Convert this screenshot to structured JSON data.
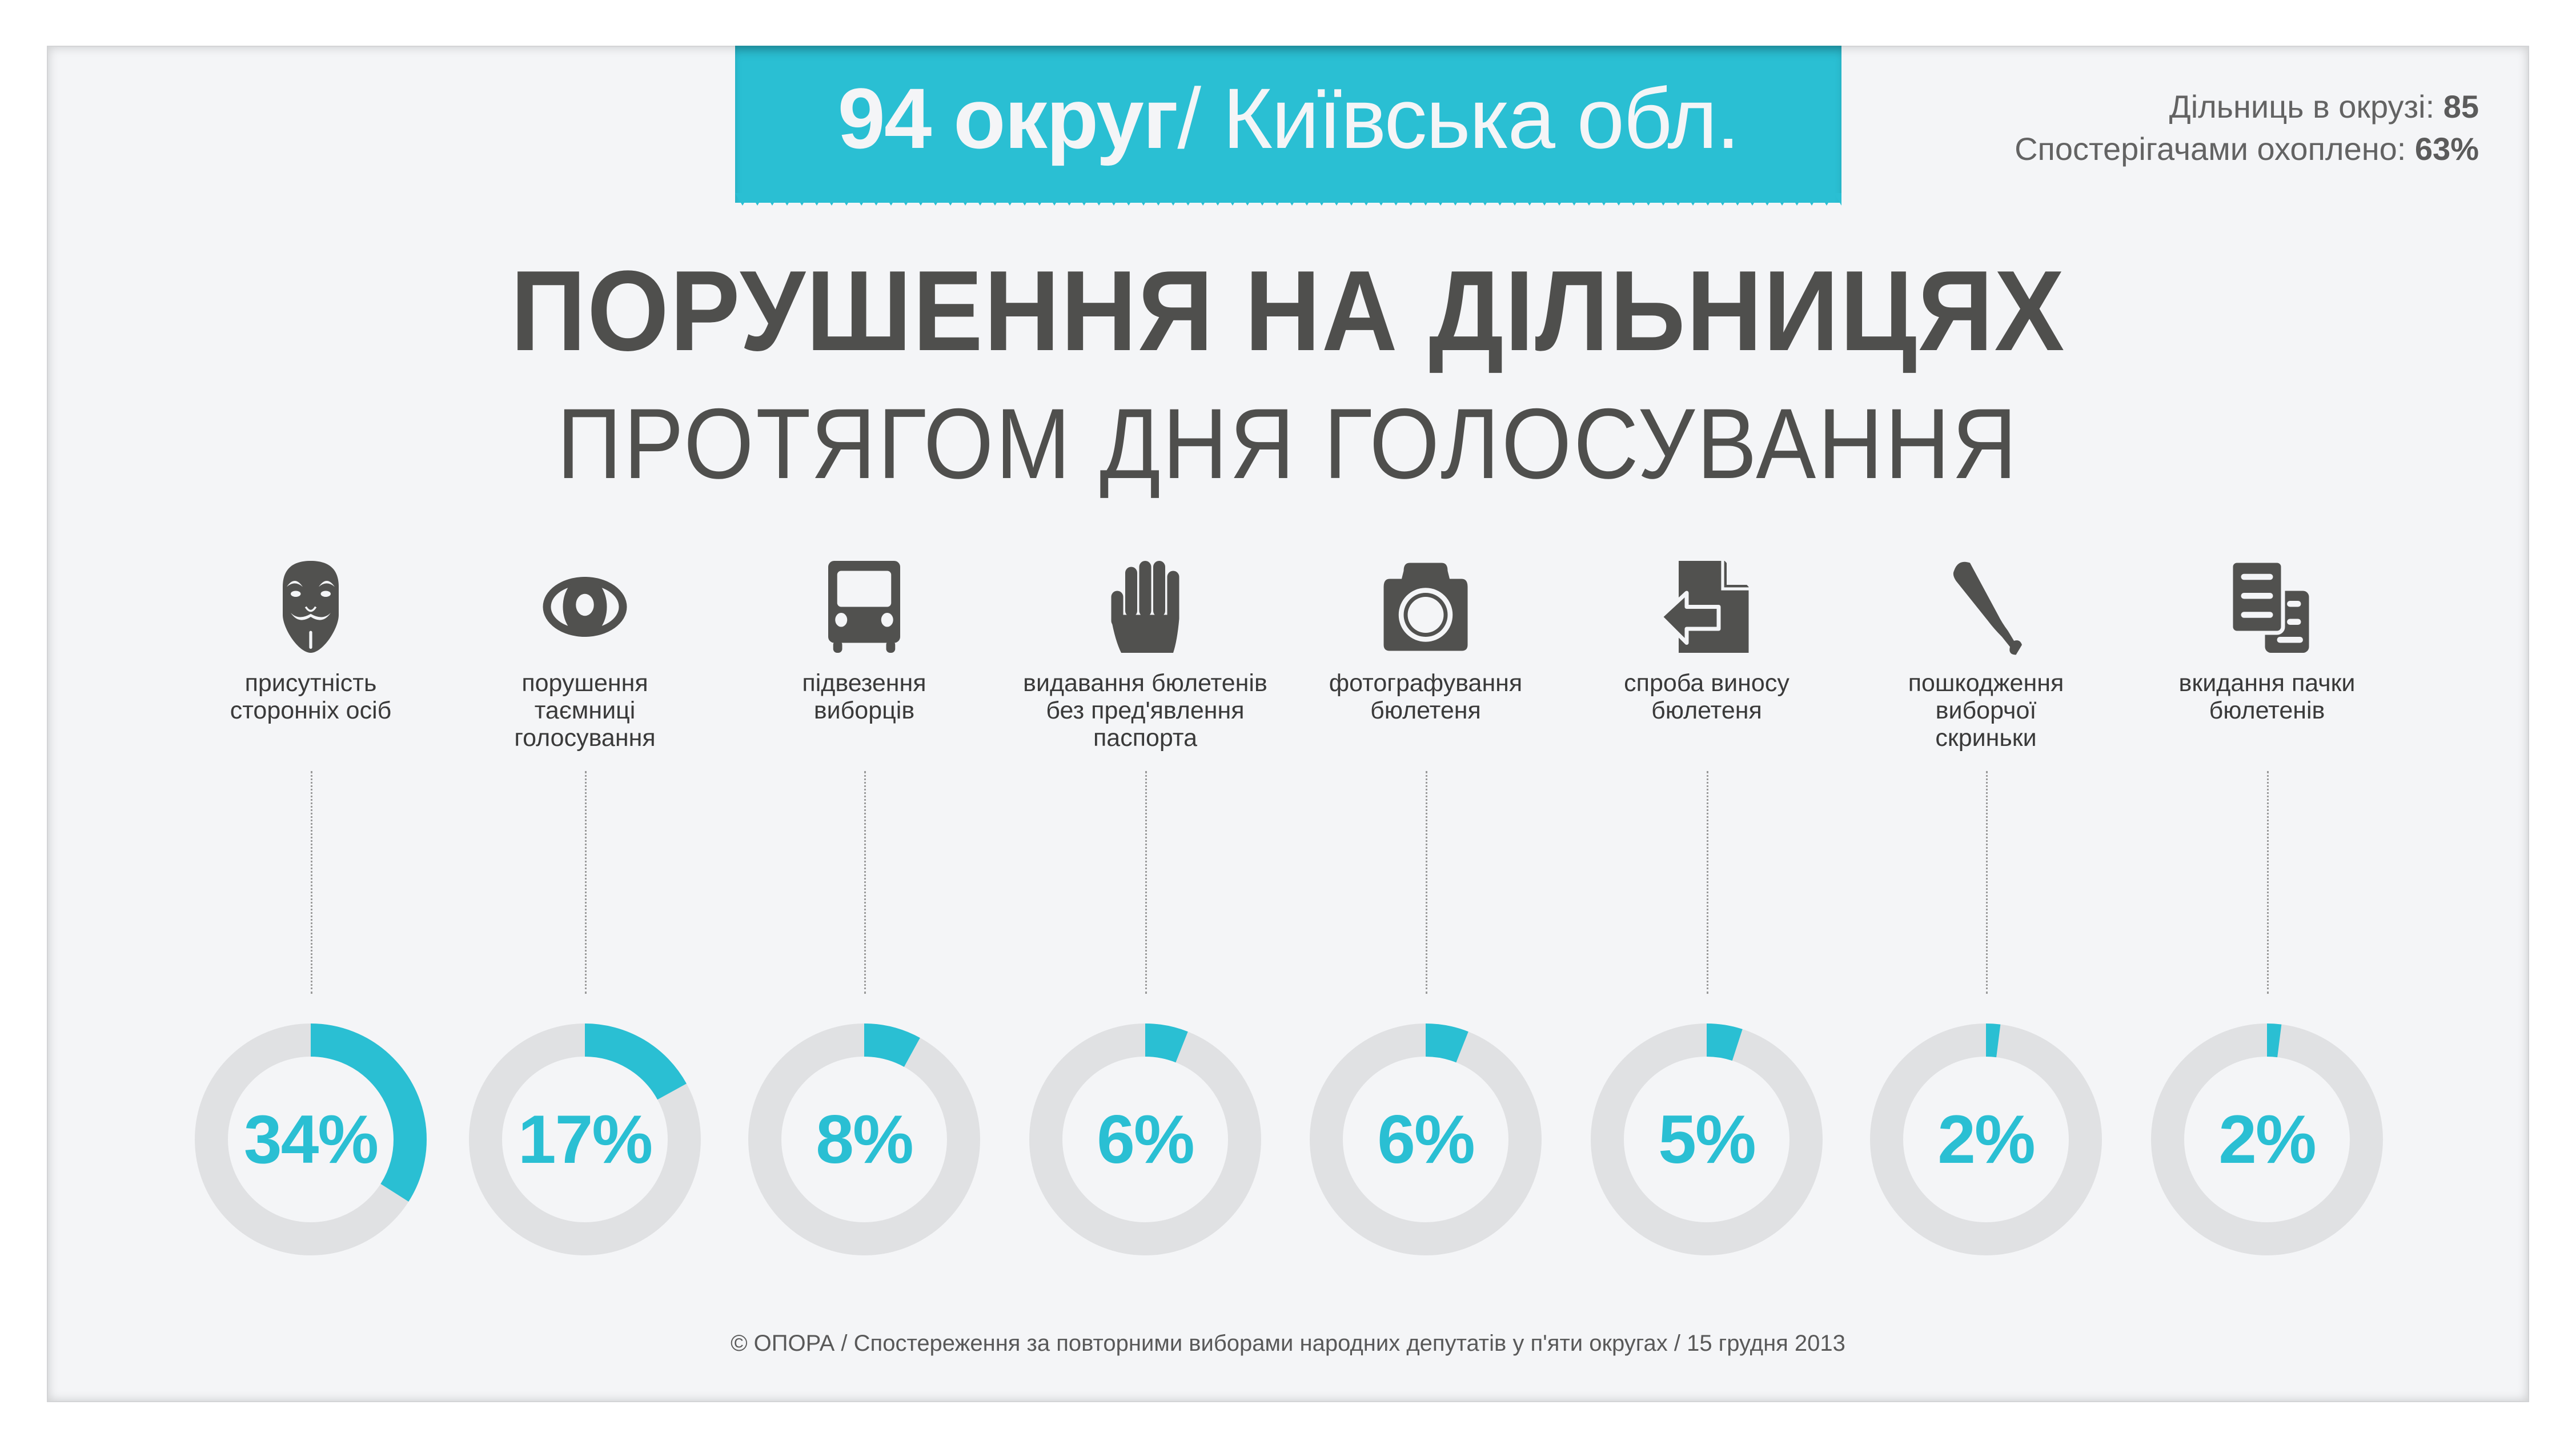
{
  "header": {
    "district_bold": "94 округ",
    "district_rest": " / Київська обл."
  },
  "stats": {
    "precincts_label": "Дільниць в окрузі: ",
    "precincts_value": "85",
    "coverage_label": "Спостерігачами охоплено: ",
    "coverage_value": "63%"
  },
  "title": {
    "line1": "ПОРУШЕННЯ НА ДІЛЬНИЦЯХ",
    "line2": "ПРОТЯГОМ ДНЯ ГОЛОСУВАННЯ"
  },
  "colors": {
    "accent": "#2abfd3",
    "ring_track": "#e0e1e3",
    "icon": "#51514f",
    "background": "#f4f5f7"
  },
  "violations": [
    {
      "icon": "mask-icon",
      "label": "присутність\nсторонніх осіб",
      "value": 34,
      "display": "34%"
    },
    {
      "icon": "eye-icon",
      "label": "порушення\nтаємниці\nголосування",
      "value": 17,
      "display": "17%"
    },
    {
      "icon": "bus-icon",
      "label": "підвезення\nвиборців",
      "value": 8,
      "display": "8%"
    },
    {
      "icon": "hand-icon",
      "label": "видавання бюлетенів\nбез пред'явлення\nпаспорта",
      "value": 6,
      "display": "6%"
    },
    {
      "icon": "camera-icon",
      "label": "фотографування\nбюлетеня",
      "value": 6,
      "display": "6%"
    },
    {
      "icon": "document-export-icon",
      "label": "спроба виносу\nбюлетеня",
      "value": 5,
      "display": "5%"
    },
    {
      "icon": "bat-icon",
      "label": "пошкодження\nвиборчої\nскриньки",
      "value": 2,
      "display": "2%"
    },
    {
      "icon": "documents-stack-icon",
      "label": "вкидання пачки\nбюлетенів",
      "value": 2,
      "display": "2%"
    }
  ],
  "footer": {
    "text": "© ОПОРА / Спостереження за повторними виборами народних депутатів  у п'яти округах / 15 грудня 2013"
  },
  "chart_data": {
    "type": "donut",
    "title": "ПОРУШЕННЯ НА ДІЛЬНИЦЯХ ПРОТЯГОМ ДНЯ ГОЛОСУВАННЯ",
    "subtitle": "94 округ / Київська обл.",
    "categories": [
      "присутність сторонніх осіб",
      "порушення таємниці голосування",
      "підвезення виборців",
      "видавання бюлетенів без пред'явлення паспорта",
      "фотографування бюлетеня",
      "спроба виносу бюлетеня",
      "пошкодження виборчої скриньки",
      "вкидання пачки бюлетенів"
    ],
    "values": [
      34,
      17,
      8,
      6,
      6,
      5,
      2,
      2
    ],
    "unit": "%",
    "annotations": [
      "Дільниць в окрузі: 85",
      "Спостерігачами охоплено: 63%"
    ],
    "source": "© ОПОРА / Спостереження за повторними виборами народних депутатів у п'яти округах / 15 грудня 2013"
  }
}
